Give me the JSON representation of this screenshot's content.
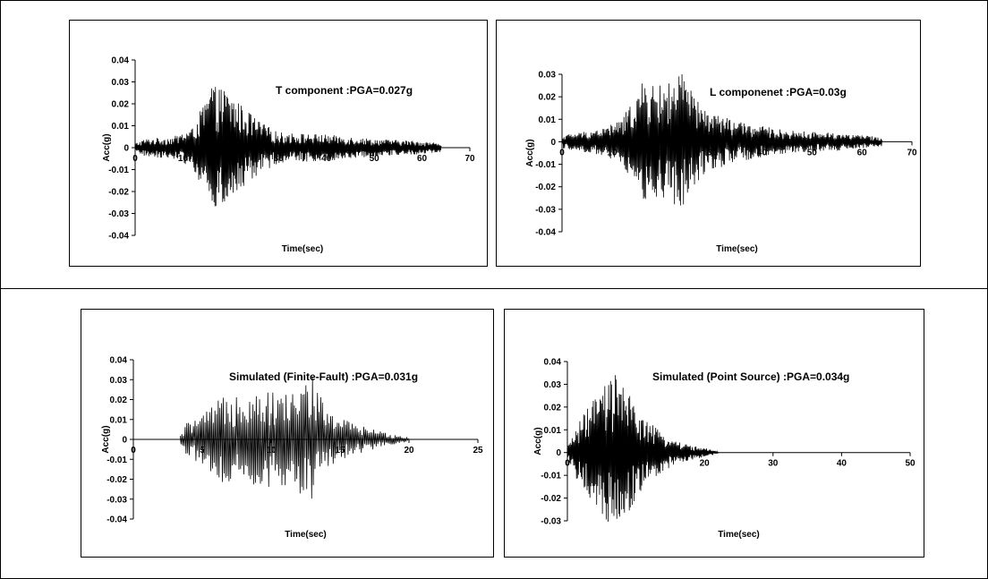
{
  "chart_data": [
    {
      "id": "T",
      "type": "line",
      "title": "T component :PGA=0.027g",
      "xlabel": "Time(sec)",
      "ylabel": "Acc(g)",
      "xlim": [
        0,
        70
      ],
      "ylim": [
        -0.04,
        0.04
      ],
      "xticks": [
        0,
        10,
        20,
        30,
        40,
        50,
        60,
        70
      ],
      "yticks": [
        -0.04,
        -0.03,
        -0.02,
        -0.01,
        0,
        0.01,
        0.02,
        0.03,
        0.04
      ],
      "ytick_labels": [
        "-0.04",
        "-0.03",
        "-0.02",
        "-0.01",
        "0",
        "0.01",
        "0.02",
        "0.03",
        "0.04"
      ],
      "grid": false,
      "series": [
        {
          "duration": 64,
          "dt": 0.1,
          "pga": 0.027,
          "envelope_t": [
            0,
            2,
            8,
            12,
            16,
            19,
            22,
            26,
            30,
            40,
            50,
            60,
            64
          ],
          "envelope_a": [
            0.002,
            0.004,
            0.005,
            0.009,
            0.028,
            0.027,
            0.02,
            0.012,
            0.007,
            0.006,
            0.004,
            0.003,
            0.002
          ]
        }
      ]
    },
    {
      "id": "L",
      "type": "line",
      "title": "L componenet :PGA=0.03g",
      "xlabel": "Time(sec)",
      "ylabel": "Acc(g)",
      "xlim": [
        0,
        70
      ],
      "ylim": [
        -0.04,
        0.03
      ],
      "xticks": [
        0,
        10,
        20,
        30,
        40,
        50,
        60,
        70
      ],
      "yticks": [
        -0.04,
        -0.03,
        -0.02,
        -0.01,
        0,
        0.01,
        0.02,
        0.03
      ],
      "ytick_labels": [
        "-0.04",
        "-0.03",
        "-0.02",
        "-0.01",
        "0",
        "0.01",
        "0.02",
        "0.03"
      ],
      "grid": false,
      "series": [
        {
          "duration": 64,
          "dt": 0.1,
          "pga": 0.03,
          "envelope_t": [
            0,
            3,
            8,
            12,
            16,
            20,
            24,
            28,
            35,
            45,
            55,
            64
          ],
          "envelope_a": [
            0.003,
            0.004,
            0.006,
            0.01,
            0.026,
            0.025,
            0.03,
            0.015,
            0.009,
            0.005,
            0.004,
            0.002
          ]
        }
      ]
    },
    {
      "id": "FF",
      "type": "line",
      "title": "Simulated (Finite-Fault) :PGA=0.031g",
      "xlabel": "Time(sec)",
      "ylabel": "Acc(g)",
      "xlim": [
        0,
        25
      ],
      "ylim": [
        -0.04,
        0.04
      ],
      "xticks": [
        0,
        5,
        10,
        15,
        20,
        25
      ],
      "yticks": [
        -0.04,
        -0.03,
        -0.02,
        -0.01,
        0,
        0.01,
        0.02,
        0.03,
        0.04
      ],
      "ytick_labels": [
        "-0.04",
        "-0.03",
        "-0.02",
        "-0.01",
        "0",
        "0.01",
        "0.02",
        "0.03",
        "0.04"
      ],
      "grid": false,
      "series": [
        {
          "duration": 20,
          "start": 3.4,
          "dt": 0.06,
          "pga": 0.031,
          "envelope_t": [
            3.4,
            4,
            5,
            7,
            9,
            11,
            13,
            14,
            16,
            18,
            20
          ],
          "envelope_a": [
            0.002,
            0.01,
            0.012,
            0.025,
            0.025,
            0.023,
            0.031,
            0.015,
            0.008,
            0.004,
            0.001
          ]
        }
      ]
    },
    {
      "id": "PS",
      "type": "line",
      "title": "Simulated (Point Source) :PGA=0.034g",
      "xlabel": "Time(sec)",
      "ylabel": "Acc(g)",
      "xlim": [
        0,
        50
      ],
      "ylim": [
        -0.03,
        0.04
      ],
      "xticks": [
        0,
        10,
        20,
        30,
        40,
        50
      ],
      "yticks": [
        -0.03,
        -0.02,
        -0.01,
        0,
        0.01,
        0.02,
        0.03,
        0.04
      ],
      "ytick_labels": [
        "-0.03",
        "-0.02",
        "-0.01",
        "0",
        "0.01",
        "0.02",
        "0.03",
        "0.04"
      ],
      "grid": false,
      "series": [
        {
          "duration": 22,
          "dt": 0.07,
          "pga": 0.034,
          "envelope_t": [
            0,
            1,
            3,
            5,
            7,
            9,
            11,
            14,
            17,
            20,
            22,
            41
          ],
          "envelope_a": [
            0.002,
            0.01,
            0.02,
            0.028,
            0.034,
            0.026,
            0.016,
            0.008,
            0.004,
            0.002,
            0.0005,
            0.0005
          ]
        }
      ]
    }
  ]
}
